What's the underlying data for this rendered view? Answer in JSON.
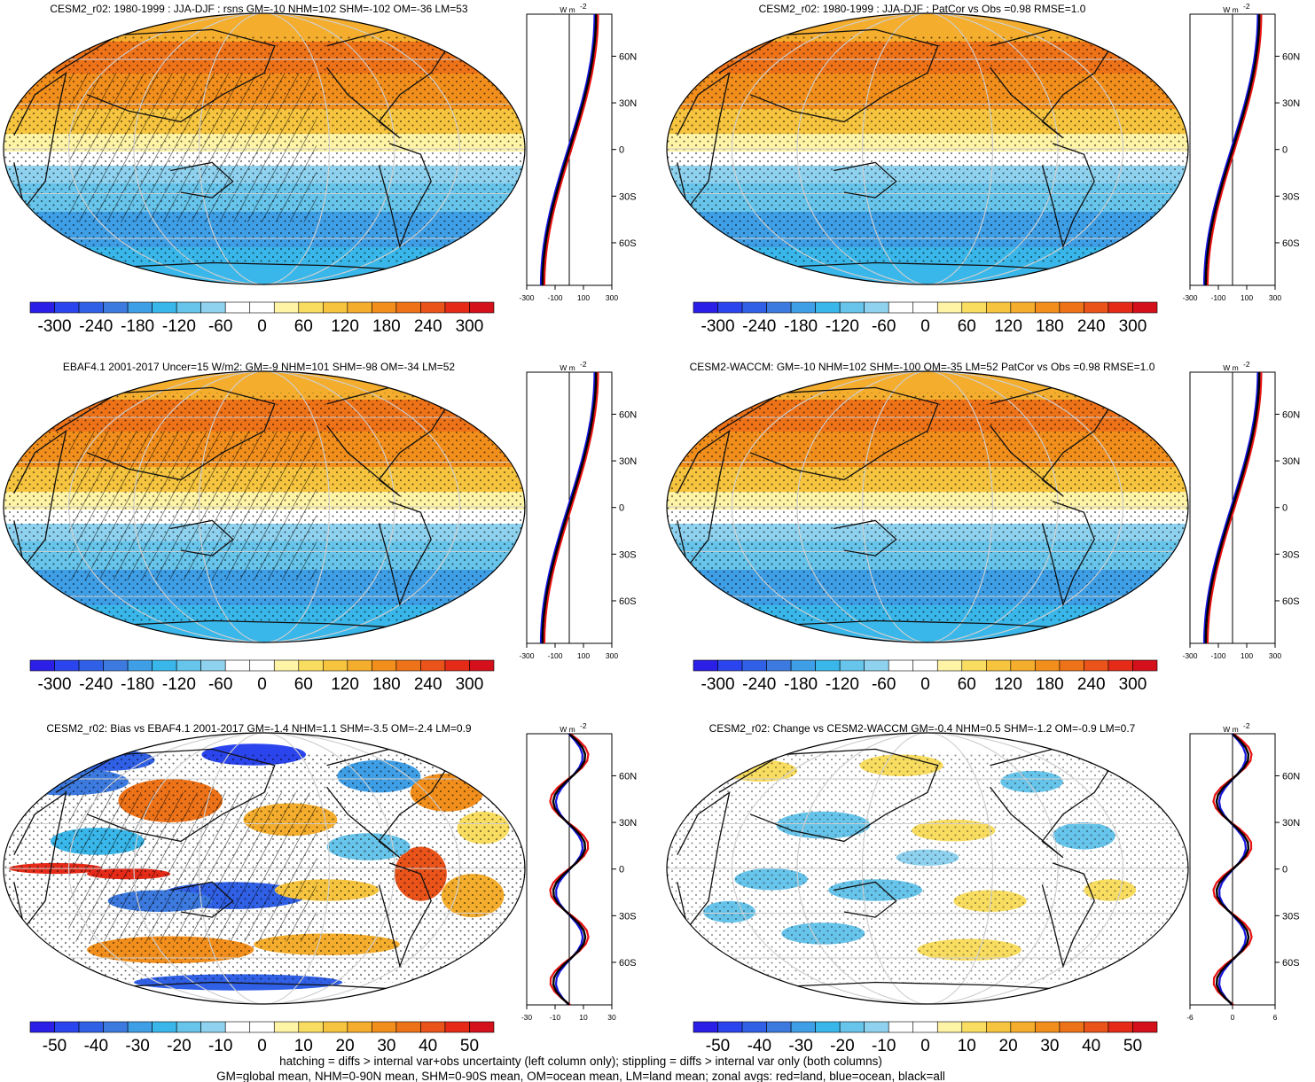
{
  "colors": {
    "div_scale": [
      "#2b1ee6",
      "#2b45ee",
      "#3060e6",
      "#3c7ae0",
      "#3f9fe6",
      "#39b7ea",
      "#67c4ea",
      "#8fd2ef",
      "#ffffff",
      "#ffffff",
      "#fff3a6",
      "#f9dd60",
      "#f6c43e",
      "#f4ad2c",
      "#f28f1c",
      "#ee7218",
      "#ea531a",
      "#e52a18",
      "#d4101a"
    ],
    "land_line": "#111111",
    "grid_line": "#cfcfcf",
    "zonal_land": "#e81010",
    "zonal_ocean": "#1515e0",
    "zonal_all": "#000000"
  },
  "panels": [
    {
      "id": "cesm2-r02",
      "title": "CESM2_r02: 1980-1999 : JJA-DJF : rsns GM=-10 NHM=102 SHM=-102 OM=-36 LM=53",
      "type": "field",
      "hatch": true,
      "colorbar_labels": [
        "-300",
        "-240",
        "-180",
        "-120",
        "-60",
        "0",
        "60",
        "120",
        "180",
        "240",
        "300"
      ],
      "zonal_unit": "W m",
      "zonal_unit_exp": "-2",
      "zonal_ticks": [
        "-300",
        "-100",
        "100",
        "300"
      ],
      "lat_labels": [
        "60N",
        "30N",
        "0",
        "30S",
        "60S"
      ]
    },
    {
      "id": "cesm2-r02-patcor",
      "title": "CESM2_r02: 1980-1999 : JJA-DJF : PatCor vs Obs =0.98 RMSE=1.0",
      "type": "field",
      "hatch": false,
      "colorbar_labels": [
        "-300",
        "-240",
        "-180",
        "-120",
        "-60",
        "0",
        "60",
        "120",
        "180",
        "240",
        "300"
      ],
      "zonal_unit": "W m",
      "zonal_unit_exp": "-2",
      "zonal_ticks": [
        "-300",
        "-100",
        "100",
        "300"
      ],
      "lat_labels": [
        "60N",
        "30N",
        "0",
        "30S",
        "60S"
      ]
    },
    {
      "id": "ebaf",
      "title": "EBAF4.1 2001-2017 Uncer=15 W/m2: GM=-9 NHM=101 SHM=-98 OM=-34 LM=52",
      "type": "field",
      "hatch": true,
      "colorbar_labels": [
        "-300",
        "-240",
        "-180",
        "-120",
        "-60",
        "0",
        "60",
        "120",
        "180",
        "240",
        "300"
      ],
      "zonal_unit": "W m",
      "zonal_unit_exp": "-2",
      "zonal_ticks": [
        "-300",
        "-100",
        "100",
        "300"
      ],
      "lat_labels": [
        "60N",
        "30N",
        "0",
        "30S",
        "60S"
      ]
    },
    {
      "id": "waccm",
      "title": "CESM2-WACCM: GM=-10 NHM=102 SHM=-100 OM=-35 LM=52 PatCor vs Obs =0.98 RMSE=1.0",
      "type": "field",
      "hatch": false,
      "colorbar_labels": [
        "-300",
        "-240",
        "-180",
        "-120",
        "-60",
        "0",
        "60",
        "120",
        "180",
        "240",
        "300"
      ],
      "zonal_unit": "W m",
      "zonal_unit_exp": "-2",
      "zonal_ticks": [
        "-300",
        "-100",
        "100",
        "300"
      ],
      "lat_labels": [
        "60N",
        "30N",
        "0",
        "30S",
        "60S"
      ]
    },
    {
      "id": "bias",
      "title": "CESM2_r02: Bias vs EBAF4.1 2001-2017 GM=-1.4 NHM=1.1 SHM=-3.5 OM=-2.4 LM=0.9",
      "type": "bias",
      "hatch": true,
      "colorbar_labels": [
        "-50",
        "-40",
        "-30",
        "-20",
        "-10",
        "0",
        "10",
        "20",
        "30",
        "40",
        "50"
      ],
      "zonal_unit": "W m",
      "zonal_unit_exp": "-2",
      "zonal_ticks": [
        "-30",
        "-10",
        "10",
        "30"
      ],
      "lat_labels": [
        "60N",
        "30N",
        "0",
        "30S",
        "60S"
      ]
    },
    {
      "id": "change",
      "title": "CESM2_r02: Change vs CESM2-WACCM GM=-0.4 NHM=0.5 SHM=-1.2 OM=-0.9 LM=0.7",
      "type": "change",
      "hatch": false,
      "colorbar_labels": [
        "-50",
        "-40",
        "-30",
        "-20",
        "-10",
        "0",
        "10",
        "20",
        "30",
        "40",
        "50"
      ],
      "zonal_unit": "W m",
      "zonal_unit_exp": "-2",
      "zonal_ticks": [
        "-6",
        "0",
        "6"
      ],
      "lat_labels": [
        "60N",
        "30N",
        "0",
        "30S",
        "60S"
      ]
    }
  ],
  "footer": {
    "line1": "hatching = diffs > internal var+obs uncertainty (left column only); stippling = diffs > internal var only (both columns)",
    "line2": "GM=global mean, NHM=0-90N mean, SHM=0-90S mean, OM=ocean mean, LM=land mean; zonal avgs: red=land, blue=ocean, black=all"
  }
}
